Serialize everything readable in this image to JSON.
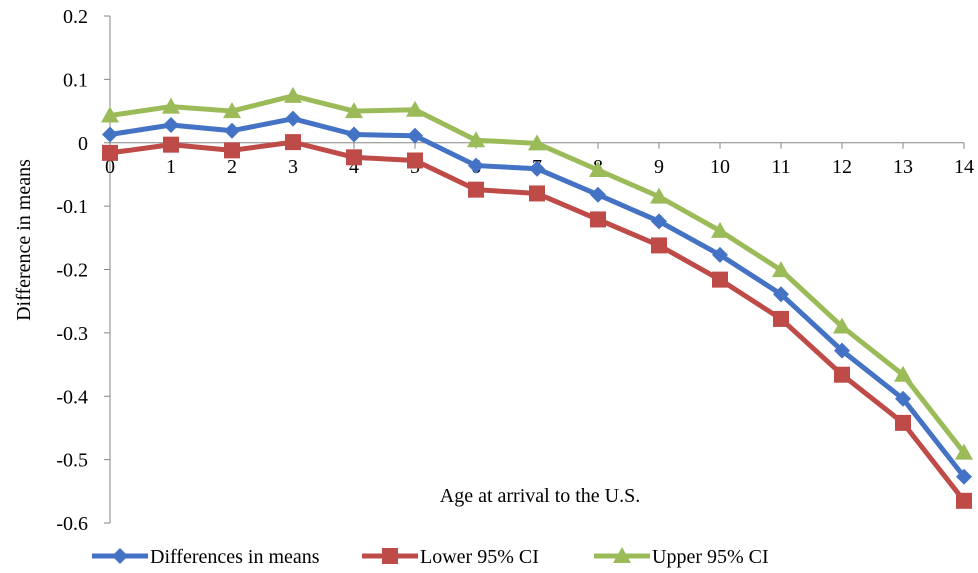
{
  "chart_data": {
    "type": "line",
    "title": "",
    "xlabel": "Age at arrival to the U.S.",
    "ylabel": "Difference in means",
    "ylim": [
      -0.6,
      0.2
    ],
    "yticks": [
      "0.2",
      "0.1",
      "0",
      "-0.1",
      "-0.2",
      "-0.3",
      "-0.4",
      "-0.5",
      "-0.6"
    ],
    "categories": [
      "0",
      "1",
      "2",
      "3",
      "4",
      "5",
      "6",
      "7",
      "8",
      "9",
      "10",
      "11",
      "12",
      "13",
      "14"
    ],
    "grid": false,
    "legend_position": "bottom",
    "series": [
      {
        "name": "Differences in means",
        "color": "#4472c4",
        "marker": "diamond",
        "values": [
          0.013,
          0.028,
          0.019,
          0.038,
          0.013,
          0.011,
          -0.036,
          -0.041,
          -0.082,
          -0.124,
          -0.177,
          -0.239,
          -0.328,
          -0.404,
          -0.527
        ]
      },
      {
        "name": "Lower 95% CI",
        "color": "#be4b48",
        "marker": "square",
        "values": [
          -0.016,
          -0.003,
          -0.012,
          0.001,
          -0.023,
          -0.028,
          -0.074,
          -0.08,
          -0.121,
          -0.162,
          -0.216,
          -0.278,
          -0.366,
          -0.442,
          -0.565
        ]
      },
      {
        "name": "Upper 95% CI",
        "color": "#9bbb59",
        "marker": "triangle",
        "values": [
          0.043,
          0.057,
          0.05,
          0.074,
          0.05,
          0.052,
          0.004,
          -0.001,
          -0.043,
          -0.085,
          -0.139,
          -0.201,
          -0.29,
          -0.366,
          -0.489
        ]
      }
    ]
  }
}
